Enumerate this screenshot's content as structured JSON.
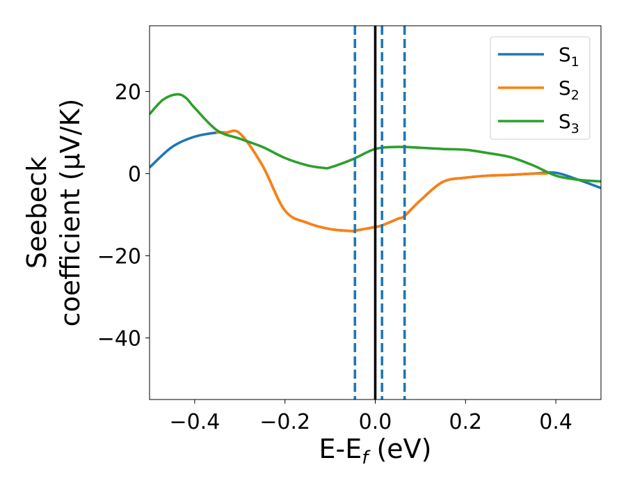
{
  "chart_data": {
    "type": "line",
    "xlabel": {
      "main": "E-E",
      "sub": "f",
      "suffix": " (eV)"
    },
    "ylabel": {
      "line1": "Seebeck",
      "line2": "coefficient  (μV/K)"
    },
    "xlim": [
      -0.5,
      0.5
    ],
    "ylim": [
      -55,
      36
    ],
    "xticks": [
      -0.4,
      -0.2,
      0.0,
      0.2,
      0.4
    ],
    "xtick_labels": [
      "−0.4",
      "−0.2",
      "0.0",
      "0.2",
      "0.4"
    ],
    "yticks": [
      20,
      0,
      -20,
      -40
    ],
    "ytick_labels": [
      "20",
      "0",
      "−20",
      "−40"
    ],
    "grid": false,
    "legend": {
      "placement": "top-right",
      "entries": [
        {
          "base": "S",
          "sub": "1"
        },
        {
          "base": "S",
          "sub": "2"
        },
        {
          "base": "S",
          "sub": "3"
        }
      ]
    },
    "vlines": [
      {
        "x": -0.045,
        "style": "dashed",
        "color": "#1f77b4"
      },
      {
        "x": 0.015,
        "style": "dashed",
        "color": "#1f77b4"
      },
      {
        "x": 0.065,
        "style": "dashed",
        "color": "#1f77b4"
      },
      {
        "x": 0.0,
        "style": "solid",
        "color": "#000000"
      }
    ],
    "series": [
      {
        "color": "#1f77b4",
        "x": [
          -0.5,
          -0.45,
          -0.4,
          -0.35,
          -0.33,
          -0.3,
          -0.25,
          -0.2,
          -0.15,
          -0.1,
          -0.05,
          -0.045,
          0.0,
          0.015,
          0.05,
          0.065,
          0.1,
          0.15,
          0.2,
          0.25,
          0.3,
          0.35,
          0.4,
          0.45,
          0.5
        ],
        "y": [
          1.5,
          6.5,
          9.0,
          10.0,
          10.0,
          9.8,
          2.0,
          -9.0,
          -12.0,
          -13.5,
          -14.0,
          -13.9,
          -13.0,
          -12.6,
          -11.0,
          -10.3,
          -6.5,
          -2.0,
          -1.0,
          -0.5,
          -0.3,
          0.0,
          0.2,
          -1.5,
          -3.5
        ]
      },
      {
        "color": "#ff7f0e",
        "x": [
          -0.35,
          -0.33,
          -0.3,
          -0.25,
          -0.2,
          -0.15,
          -0.1,
          -0.05,
          -0.045,
          0.0,
          0.015,
          0.05,
          0.065,
          0.1,
          0.15,
          0.2,
          0.25,
          0.3,
          0.35,
          0.38
        ],
        "y": [
          10.0,
          10.0,
          9.8,
          2.0,
          -9.0,
          -12.0,
          -13.5,
          -14.0,
          -13.9,
          -13.0,
          -12.6,
          -11.0,
          -10.3,
          -6.5,
          -2.0,
          -1.0,
          -0.5,
          -0.3,
          0.0,
          0.0
        ]
      },
      {
        "color": "#2ca02c",
        "x": [
          -0.5,
          -0.47,
          -0.44,
          -0.42,
          -0.4,
          -0.35,
          -0.3,
          -0.25,
          -0.2,
          -0.15,
          -0.115,
          -0.1,
          -0.05,
          0.0,
          0.05,
          0.1,
          0.15,
          0.2,
          0.25,
          0.3,
          0.35,
          0.4,
          0.45,
          0.5
        ],
        "y": [
          14.5,
          18.0,
          19.3,
          18.5,
          16.0,
          10.5,
          8.5,
          6.5,
          3.8,
          2.0,
          1.4,
          1.5,
          3.5,
          6.0,
          6.5,
          6.3,
          6.0,
          5.8,
          5.0,
          4.0,
          2.0,
          -0.5,
          -1.5,
          -1.9
        ]
      }
    ]
  }
}
